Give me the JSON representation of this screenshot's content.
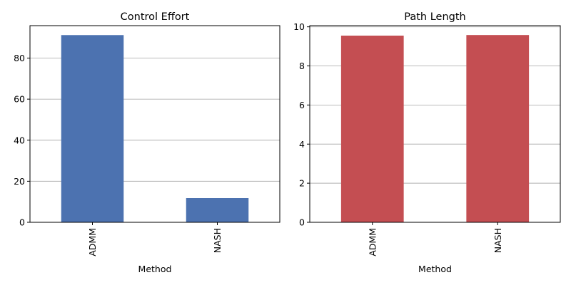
{
  "chart_data": [
    {
      "type": "bar",
      "title": "Control Effort",
      "xlabel": "Method",
      "ylabel": "",
      "categories": [
        "ADMM",
        "NASH"
      ],
      "values": [
        91.2,
        11.8
      ],
      "ylim": [
        0,
        95.8
      ],
      "yticks": [
        0,
        20,
        40,
        60,
        80
      ],
      "grid": "y",
      "color": "#4c72b0"
    },
    {
      "type": "bar",
      "title": "Path Length",
      "xlabel": "Method",
      "ylabel": "",
      "categories": [
        "ADMM",
        "NASH"
      ],
      "values": [
        9.55,
        9.58
      ],
      "ylim": [
        0,
        10.06
      ],
      "yticks": [
        0,
        2,
        4,
        6,
        8,
        10
      ],
      "grid": "y",
      "color": "#c44e52"
    }
  ]
}
